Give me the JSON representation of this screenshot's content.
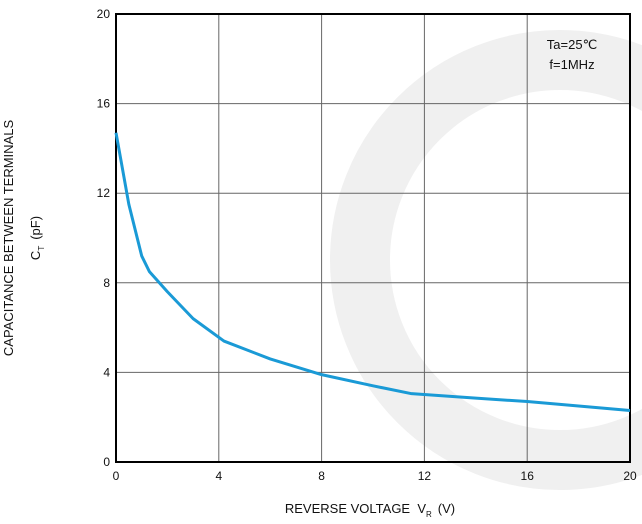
{
  "chart_data": {
    "type": "line",
    "x": [
      0,
      0.5,
      1,
      1.3,
      2,
      3,
      4.2,
      6,
      8,
      10,
      11.5,
      14,
      16,
      18,
      20
    ],
    "series": [
      {
        "name": "CT",
        "color": "#1a9ad6",
        "values": [
          14.7,
          11.5,
          9.2,
          8.5,
          7.6,
          6.4,
          5.4,
          4.6,
          3.9,
          3.4,
          3.05,
          2.85,
          2.7,
          2.5,
          2.3
        ]
      }
    ],
    "xlim": [
      0,
      20
    ],
    "xticks": [
      0,
      4,
      8,
      12,
      16,
      20
    ],
    "ylim": [
      0,
      20
    ],
    "yticks": [
      0,
      4,
      8,
      12,
      16,
      20
    ],
    "grid": true,
    "xlabel": {
      "text": "REVERSE VOLTAGE  V",
      "sub": "R",
      "unit": "(V)"
    },
    "ylabel": {
      "line1": "CAPACITANCE BETWEEN TERMINALS",
      "text": "C",
      "sub": "T",
      "unit": "(pF)"
    },
    "annotations": [
      "Ta=25℃",
      "f=1MHz"
    ]
  }
}
